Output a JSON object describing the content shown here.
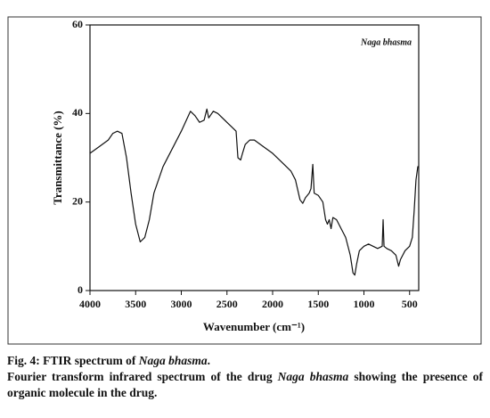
{
  "chart_data": {
    "type": "line",
    "x_label": "Wavenumber (cm⁻¹)",
    "y_label": "Transmittance (%)",
    "annotation": "Naga bhasma",
    "xlim": [
      4000,
      400
    ],
    "ylim": [
      0,
      60
    ],
    "xticks": [
      4000,
      3500,
      3000,
      2500,
      2000,
      1500,
      1000,
      500
    ],
    "yticks": [
      0,
      20,
      40,
      60
    ],
    "color": "#111111",
    "x": [
      4000,
      3900,
      3800,
      3750,
      3700,
      3650,
      3600,
      3550,
      3500,
      3450,
      3400,
      3350,
      3300,
      3200,
      3100,
      3000,
      2900,
      2850,
      2800,
      2750,
      2720,
      2700,
      2650,
      2600,
      2500,
      2450,
      2400,
      2380,
      2350,
      2330,
      2300,
      2250,
      2200,
      2100,
      2000,
      1900,
      1800,
      1750,
      1700,
      1670,
      1640,
      1600,
      1580,
      1560,
      1545,
      1500,
      1450,
      1420,
      1400,
      1380,
      1360,
      1340,
      1300,
      1250,
      1200,
      1150,
      1120,
      1100,
      1080,
      1050,
      1000,
      950,
      900,
      850,
      800,
      790,
      780,
      750,
      700,
      650,
      620,
      600,
      550,
      500,
      470,
      450,
      430,
      410,
      400
    ],
    "values": [
      31,
      32.5,
      34,
      35.5,
      36,
      35.5,
      30,
      22,
      15,
      11,
      12,
      16,
      22,
      28,
      32,
      36,
      40.5,
      39.5,
      38,
      38.5,
      41,
      39,
      40.5,
      40,
      38,
      37,
      36,
      30,
      29.5,
      31,
      33,
      34,
      34,
      32.5,
      31,
      29,
      27,
      25,
      20.5,
      19.7,
      21,
      22,
      23,
      28.5,
      22,
      21.5,
      20,
      16,
      15,
      16,
      14,
      16.5,
      16,
      14,
      12,
      8,
      4,
      3.5,
      6,
      9,
      10,
      10.5,
      10,
      9.5,
      10,
      16,
      10,
      9.5,
      9,
      8,
      5.5,
      7,
      9,
      10,
      12,
      18,
      25,
      28,
      28
    ]
  },
  "caption": {
    "title": [
      "Fig. 4: FTIR spectrum of",
      "Naga bhasma",
      "."
    ],
    "text": [
      "Fourier transform infrared spectrum of the drug",
      "Naga bhasma",
      "showing the presence of organic molecule in the drug."
    ]
  }
}
